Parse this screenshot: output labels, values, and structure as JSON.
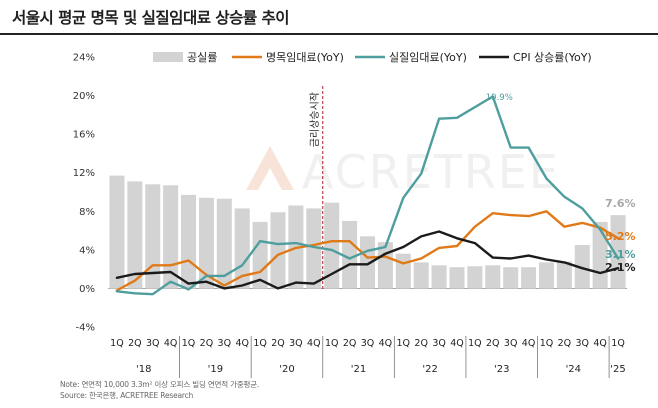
{
  "title": "서울시 평균 명목 및 실질임대료 상승률 추이",
  "watermark": "ACRETREE",
  "annotation": {
    "text": "금리상승시작",
    "x_index": 12
  },
  "note": "Note: 연면적 10,000 3.3m² 이상 오피스 빌딩 연면적 가중평균.",
  "source": "Source: 한국은행, ACRETREE Research",
  "colors": {
    "vacancy": "#d3d3d3",
    "nominal": "#e07a18",
    "real": "#4f9e9e",
    "cpi": "#1b1b1b",
    "annotation": "#b01c2e",
    "grid": "#dcdcdc"
  },
  "chart_data": {
    "type": "bar+line",
    "ylim": [
      -4,
      24
    ],
    "yticks": [
      "-4%",
      "0%",
      "4%",
      "8%",
      "12%",
      "16%",
      "20%",
      "24%"
    ],
    "ytick_values": [
      -4,
      0,
      4,
      8,
      12,
      16,
      20,
      24
    ],
    "quarters": [
      "1Q",
      "2Q",
      "3Q",
      "4Q",
      "1Q",
      "2Q",
      "3Q",
      "4Q",
      "1Q",
      "2Q",
      "3Q",
      "4Q",
      "1Q",
      "2Q",
      "3Q",
      "4Q",
      "1Q",
      "2Q",
      "3Q",
      "4Q",
      "1Q",
      "2Q",
      "3Q",
      "4Q",
      "1Q",
      "2Q",
      "3Q",
      "4Q",
      "1Q"
    ],
    "years": [
      {
        "label": "'18",
        "start": 0,
        "count": 4
      },
      {
        "label": "'19",
        "start": 4,
        "count": 4
      },
      {
        "label": "'20",
        "start": 8,
        "count": 4
      },
      {
        "label": "'21",
        "start": 12,
        "count": 4
      },
      {
        "label": "'22",
        "start": 16,
        "count": 4
      },
      {
        "label": "'23",
        "start": 20,
        "count": 4
      },
      {
        "label": "'24",
        "start": 24,
        "count": 4
      },
      {
        "label": "'25",
        "start": 28,
        "count": 1
      }
    ],
    "series": [
      {
        "name": "공실률",
        "type": "bar",
        "color": "#d3d3d3",
        "values": [
          11.7,
          11.1,
          10.8,
          10.7,
          9.7,
          9.4,
          9.3,
          8.3,
          6.9,
          7.9,
          8.6,
          8.3,
          8.9,
          7.0,
          5.4,
          4.8,
          3.6,
          2.7,
          2.4,
          2.2,
          2.3,
          2.4,
          2.2,
          2.2,
          2.7,
          2.8,
          4.5,
          6.9,
          7.6
        ]
      },
      {
        "name": "명목임대료(YoY)",
        "type": "line",
        "color": "#e07a18",
        "values": [
          -0.2,
          0.8,
          2.4,
          2.4,
          2.9,
          1.4,
          0.3,
          1.3,
          1.7,
          3.5,
          4.2,
          4.5,
          4.9,
          4.9,
          3.2,
          3.3,
          2.6,
          3.1,
          4.2,
          4.4,
          6.4,
          7.8,
          7.6,
          7.5,
          8.0,
          6.4,
          6.8,
          6.3,
          5.2
        ]
      },
      {
        "name": "실질임대료(YoY)",
        "type": "line",
        "color": "#4f9e9e",
        "values": [
          -0.3,
          -0.5,
          -0.6,
          0.7,
          -0.1,
          1.3,
          1.3,
          2.4,
          4.9,
          4.6,
          4.7,
          4.3,
          4.0,
          3.1,
          3.9,
          4.3,
          9.4,
          11.9,
          17.6,
          17.7,
          18.8,
          19.9,
          14.6,
          14.6,
          11.4,
          9.5,
          8.3,
          6.1,
          3.1
        ]
      },
      {
        "name": "CPI 상승률(YoY)",
        "type": "line",
        "color": "#1b1b1b",
        "values": [
          1.1,
          1.5,
          1.6,
          1.7,
          0.5,
          0.7,
          0.0,
          0.3,
          0.9,
          0.0,
          0.6,
          0.5,
          1.5,
          2.5,
          2.5,
          3.6,
          4.3,
          5.4,
          5.9,
          5.2,
          4.7,
          3.2,
          3.1,
          3.4,
          3.0,
          2.7,
          2.1,
          1.6,
          2.1
        ]
      }
    ],
    "end_labels": [
      {
        "series": 0,
        "text": "7.6%",
        "color": "#a8a8a8"
      },
      {
        "series": 1,
        "text": "5.2%",
        "color": "#e07a18"
      },
      {
        "series": 2,
        "text": "3.1%",
        "color": "#4f9e9e"
      },
      {
        "series": 3,
        "text": "2.1%",
        "color": "#1b1b1b"
      }
    ],
    "peak_label": {
      "series": 2,
      "index": 21,
      "text": "19.9%"
    },
    "legend_placement": "top",
    "grid": false
  }
}
